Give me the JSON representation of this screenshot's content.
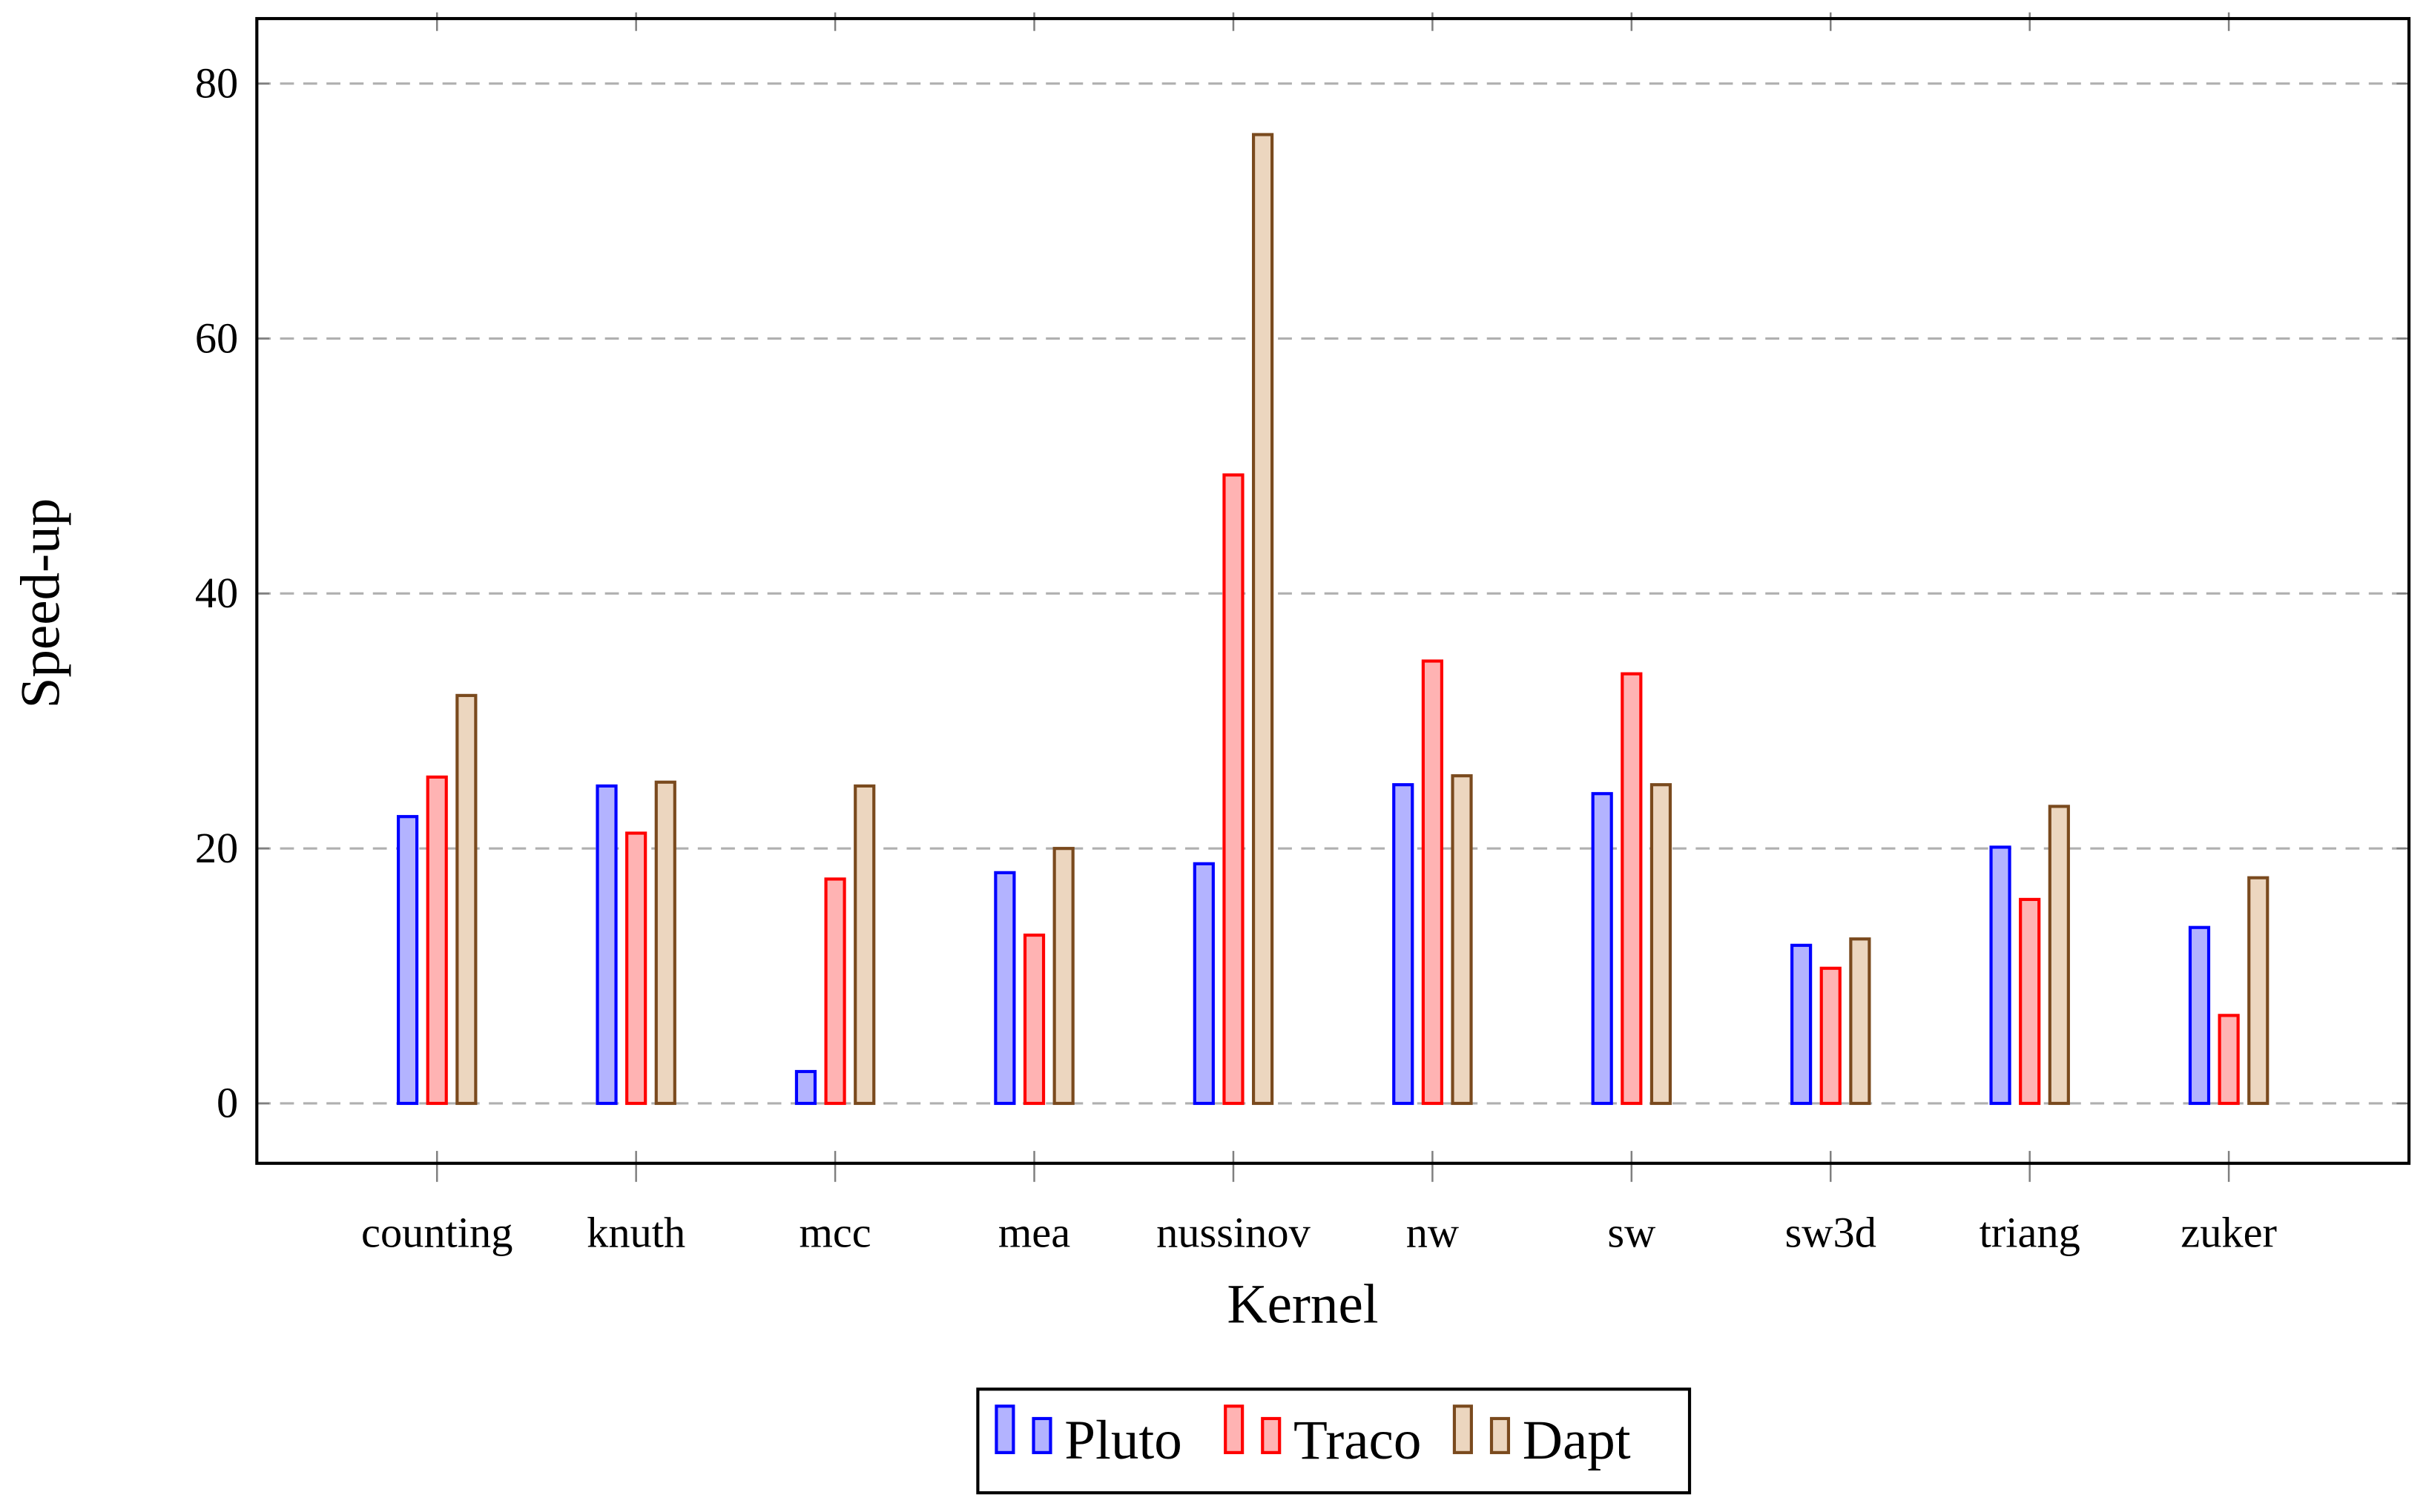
{
  "chart_data": {
    "type": "bar",
    "x_label": "Kernel",
    "y_label": "Speed-up",
    "categories": [
      "counting",
      "knuth",
      "mcc",
      "mea",
      "nussinov",
      "nw",
      "sw",
      "sw3d",
      "triang",
      "zuker"
    ],
    "series": [
      {
        "name": "Pluto",
        "color": "#0000ff",
        "values": [
          22.5,
          24.9,
          2.5,
          18.1,
          18.8,
          25.0,
          24.3,
          12.4,
          20.1,
          13.8
        ]
      },
      {
        "name": "Traco",
        "color": "#ff0000",
        "values": [
          25.6,
          21.2,
          17.6,
          13.2,
          49.3,
          34.7,
          33.7,
          10.6,
          16.0,
          6.9
        ]
      },
      {
        "name": "Dapt",
        "color": "#7a4a1e",
        "values": [
          32.0,
          25.2,
          24.9,
          20.0,
          76.0,
          25.7,
          25.0,
          12.9,
          23.3,
          17.7
        ]
      }
    ],
    "ylim": [
      -4.7,
      85.1
    ],
    "yticks": [
      0,
      20,
      40,
      60,
      80
    ],
    "grid": true,
    "legend": "bottom"
  }
}
